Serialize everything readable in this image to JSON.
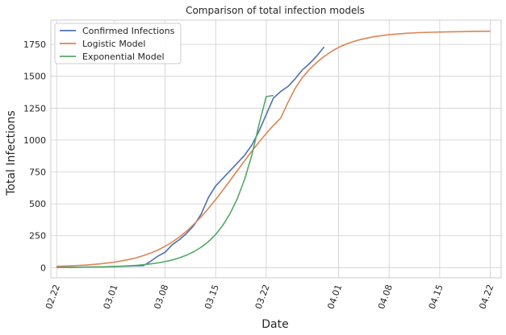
{
  "chart_data": {
    "type": "line",
    "title": "Comparison of total infection models",
    "xlabel": "Date",
    "ylabel": "Total Infections",
    "x_ticks": [
      "02.22",
      "03.01",
      "03.08",
      "03.15",
      "03.22",
      "04.01",
      "04.08",
      "04.15",
      "04.22"
    ],
    "x_tick_days": [
      0,
      8,
      15,
      22,
      29,
      39,
      46,
      53,
      60
    ],
    "y_ticks": [
      0,
      250,
      500,
      750,
      1000,
      1250,
      1500,
      1750
    ],
    "xlim": [
      -0.8,
      61.5
    ],
    "ylim": [
      -80,
      1940
    ],
    "grid": true,
    "legend_position": "top-left",
    "series": [
      {
        "name": "Confirmed Infections",
        "color": "#4c72b0",
        "x": [
          0,
          2,
          4,
          6,
          8,
          10,
          11,
          12,
          13,
          14,
          15,
          16,
          17,
          18,
          19,
          20,
          21,
          22,
          23,
          24,
          25,
          26,
          27,
          28,
          29,
          30,
          31,
          32,
          33,
          34,
          35,
          36,
          37,
          38,
          39,
          40,
          41
        ],
        "y": [
          3,
          3,
          4,
          5,
          8,
          12,
          14,
          15,
          50,
          90,
          120,
          180,
          220,
          270,
          330,
          420,
          550,
          640,
          700,
          760,
          820,
          880,
          960,
          1070,
          1200,
          1330,
          1380,
          1420,
          1480,
          1550,
          1600,
          1660,
          1730,
          null,
          null,
          null,
          null
        ]
      },
      {
        "name": "Logistic Model",
        "color": "#dd8452",
        "x": [
          0,
          2,
          4,
          6,
          8,
          10,
          11,
          12,
          13,
          14,
          15,
          16,
          17,
          18,
          19,
          20,
          21,
          22,
          23,
          24,
          25,
          26,
          27,
          28,
          29,
          30,
          31,
          32,
          33,
          34,
          35,
          36,
          37,
          38,
          39,
          40,
          41,
          42,
          43,
          44,
          45,
          46,
          47,
          48,
          49,
          50,
          52,
          54,
          56,
          58,
          60
        ],
        "y": [
          10,
          14,
          20,
          29,
          43,
          63,
          77,
          94,
          114,
          138,
          167,
          201,
          241,
          287,
          340,
          399,
          464,
          534,
          607,
          683,
          760,
          837,
          912,
          984,
          1052,
          1115,
          1172,
          1294,
          1405,
          1490,
          1555,
          1609,
          1655,
          1694,
          1726,
          1751,
          1771,
          1787,
          1800,
          1811,
          1819,
          1826,
          1831,
          1835,
          1839,
          1842,
          1845,
          1848,
          1850,
          1852,
          1853
        ]
      },
      {
        "name": "Exponential Model",
        "color": "#55a868",
        "x": [
          0,
          2,
          4,
          6,
          8,
          10,
          11,
          12,
          13,
          14,
          15,
          16,
          17,
          18,
          19,
          20,
          21,
          22,
          23,
          24,
          25,
          26,
          27,
          28,
          29,
          30
        ],
        "y": [
          2,
          3,
          4,
          6,
          9,
          14,
          18,
          23,
          29,
          37,
          47,
          60,
          77,
          98,
          125,
          160,
          204,
          260,
          332,
          424,
          541,
          690,
          880,
          1123,
          1340,
          1350
        ]
      }
    ]
  }
}
